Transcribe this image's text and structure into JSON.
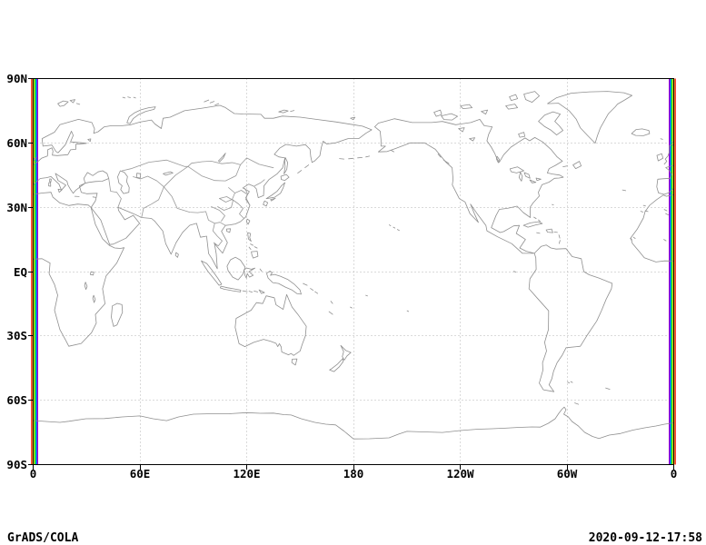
{
  "window": {
    "background_color": "#ffffff",
    "text_color": "#000000"
  },
  "map": {
    "frame_color": "#000000",
    "coastline_color": "#8f8f8f",
    "border_color": "#9a9a9a",
    "gridline_color": "#b4b4b4",
    "y_axis": {
      "labels": [
        "90N",
        "60N",
        "30N",
        "EQ",
        "30S",
        "60S",
        "90S"
      ]
    },
    "x_axis": {
      "labels": [
        "0",
        "60E",
        "120E",
        "180",
        "120W",
        "60W",
        "0"
      ]
    },
    "edge_stripes": {
      "left_outer_to_inner": [
        "#fa3c3c",
        "#f08228",
        "#e6dc32",
        "#00dc00",
        "#00c8c8",
        "#1e3cff",
        "#aa00cc"
      ],
      "right_inner_to_outer": [
        "#aa00cc",
        "#1e3cff",
        "#00c8c8",
        "#00dc00",
        "#e6dc32",
        "#f08228",
        "#fa3c3c"
      ]
    }
  },
  "footer": {
    "app_label": "GrADS/COLA",
    "timestamp": "2020-09-12-17:58"
  }
}
